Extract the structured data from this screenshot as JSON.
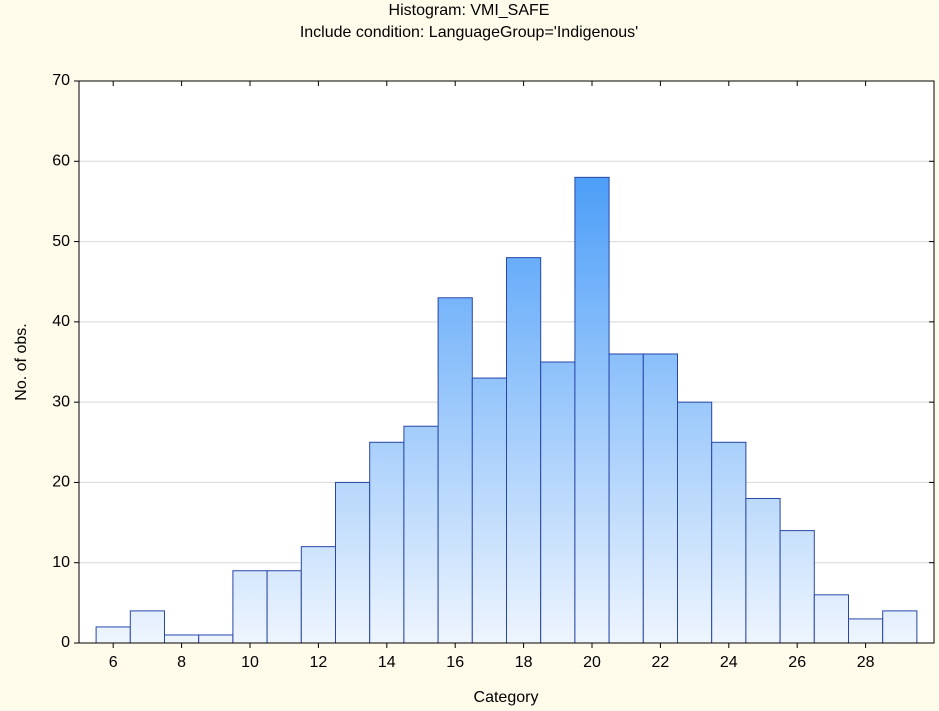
{
  "chart_data": {
    "type": "histogram",
    "title": "Histogram: VMI_SAFE",
    "subtitle": "Include condition: LanguageGroup='Indigenous'",
    "x_label": "Category",
    "y_label": "No. of obs.",
    "bins": [
      5.5,
      6.5,
      7.5,
      8.5,
      9.5,
      10.5,
      11.5,
      12.5,
      13.5,
      14.5,
      15.5,
      16.5,
      17.5,
      18.5,
      19.5,
      20.5,
      21.5,
      22.5,
      23.5,
      24.5,
      25.5,
      26.5,
      27.5,
      28.5,
      29.5
    ],
    "counts": [
      2,
      4,
      1,
      1,
      9,
      9,
      12,
      20,
      25,
      27,
      43,
      33,
      48,
      35,
      58,
      36,
      36,
      30,
      25,
      18,
      14,
      6,
      3,
      4
    ],
    "color": "#2b8cf7",
    "xlim": [
      5,
      30
    ],
    "xticks": [
      6,
      8,
      10,
      12,
      14,
      16,
      18,
      20,
      22,
      24,
      26,
      28
    ],
    "ylim": [
      0,
      70
    ],
    "yticks": [
      0,
      10,
      20,
      30,
      40,
      50,
      60,
      70
    ],
    "grid": true
  }
}
